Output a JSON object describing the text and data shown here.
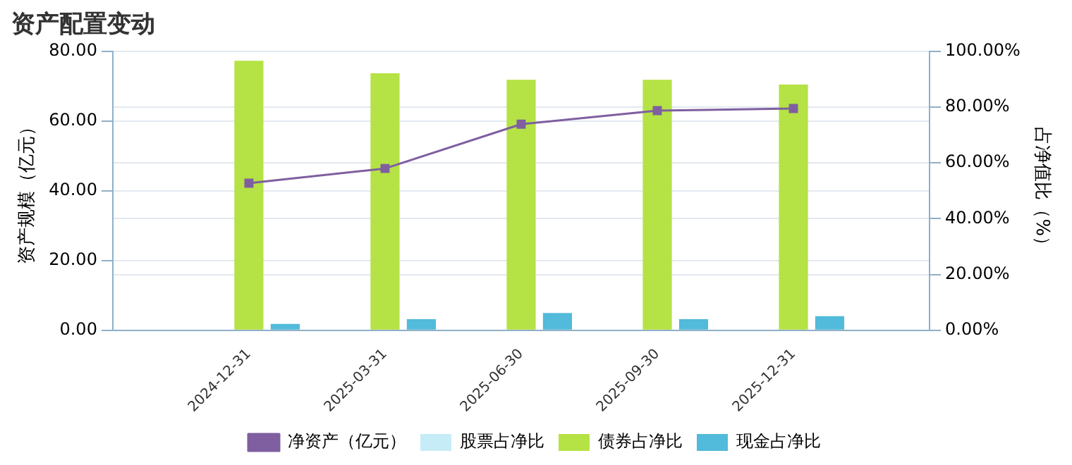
{
  "chart_data": {
    "type": "bar",
    "title": "资产配置变动",
    "ylabel": "资产规模（亿元）",
    "y2label": "占净值比（%）",
    "categories": [
      "2024-12-31",
      "2025-03-31",
      "2025-06-30",
      "2025-09-30",
      "2025-12-31"
    ],
    "series": [
      {
        "name": "股票占净比",
        "color": "#c6ecf7",
        "axis": "y2",
        "values": [
          0,
          0,
          0,
          0,
          0
        ]
      },
      {
        "name": "债券占净比",
        "color": "#b5e245",
        "axis": "y2",
        "values": [
          96.6,
          92.1,
          89.8,
          89.8,
          88.1
        ]
      },
      {
        "name": "现金占净比",
        "color": "#52bada",
        "axis": "y2",
        "values": [
          2.3,
          4.0,
          6.2,
          4.0,
          5.1
        ]
      },
      {
        "name": "净资产（亿元）",
        "type": "line",
        "color": "#7f5fa0",
        "marker": "square",
        "values": [
          42.2,
          46.4,
          59.1,
          63.0,
          63.6
        ]
      }
    ],
    "ylim": [
      0,
      80
    ],
    "yticks": [
      {
        "value": 0,
        "label": "0.00"
      },
      {
        "value": 20,
        "label": "20.00"
      },
      {
        "value": 40,
        "label": "40.00"
      },
      {
        "value": 60,
        "label": "60.00"
      },
      {
        "value": 80,
        "label": "80.00"
      }
    ],
    "y2lim": [
      0,
      100
    ],
    "y2ticks": [
      {
        "value": 0,
        "label": "0.00%"
      },
      {
        "value": 20,
        "label": "20.00%"
      },
      {
        "value": 40,
        "label": "40.00%"
      },
      {
        "value": 60,
        "label": "60.00%"
      },
      {
        "value": 80,
        "label": "80.00%"
      },
      {
        "value": 100,
        "label": "100.00%"
      }
    ],
    "grid": "y",
    "legend": "bottom"
  }
}
